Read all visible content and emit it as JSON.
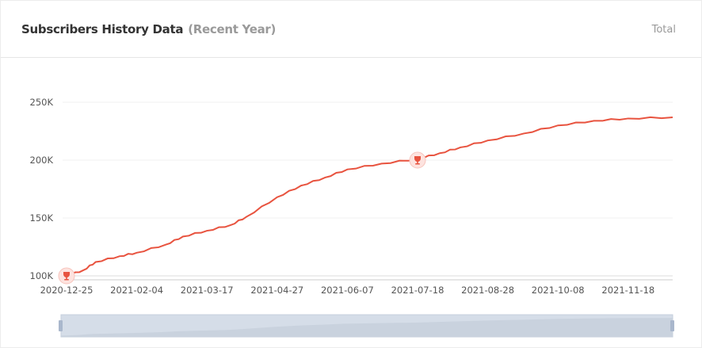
{
  "header": {
    "title": "Subscribers History Data",
    "subtitle": "(Recent Year)",
    "total_label": "Total"
  },
  "colors": {
    "line": "#e8533f",
    "marker": "#e8533f",
    "zoom_bg": "#d5dde8"
  },
  "chart_data": {
    "type": "line",
    "title": "",
    "xlabel": "",
    "ylabel": "",
    "ylim": [
      100000,
      250000
    ],
    "y_ticks": [
      "100K",
      "150K",
      "200K",
      "250K"
    ],
    "y_tick_values": [
      100000,
      150000,
      200000,
      250000
    ],
    "x_ticks": [
      "2020-12-25",
      "2021-02-04",
      "2021-03-17",
      "2021-04-27",
      "2021-06-07",
      "2021-07-18",
      "2021-08-28",
      "2021-10-08",
      "2021-11-18"
    ],
    "grid": true,
    "legend": "none",
    "x": [
      "2020-12-25",
      "2021-01-04",
      "2021-01-11",
      "2021-01-25",
      "2021-02-04",
      "2021-02-21",
      "2021-03-03",
      "2021-03-17",
      "2021-03-31",
      "2021-04-09",
      "2021-04-27",
      "2021-05-11",
      "2021-05-25",
      "2021-06-07",
      "2021-06-27",
      "2021-07-18",
      "2021-07-31",
      "2021-08-12",
      "2021-08-28",
      "2021-09-18",
      "2021-10-08",
      "2021-10-29",
      "2021-11-18",
      "2021-12-14"
    ],
    "values": [
      100000,
      105000,
      112000,
      117000,
      120000,
      127000,
      134000,
      139000,
      144000,
      151000,
      168000,
      178000,
      185000,
      192000,
      197000,
      201000,
      206000,
      211000,
      217000,
      223000,
      230000,
      234000,
      236000,
      237000
    ],
    "milestones": [
      {
        "date": "2020-12-25",
        "value": 100000,
        "icon": "trophy-icon"
      },
      {
        "date": "2021-07-18",
        "value": 200000,
        "icon": "trophy-icon"
      }
    ],
    "data_zoom": {
      "start_percent": 0,
      "end_percent": 100
    }
  }
}
